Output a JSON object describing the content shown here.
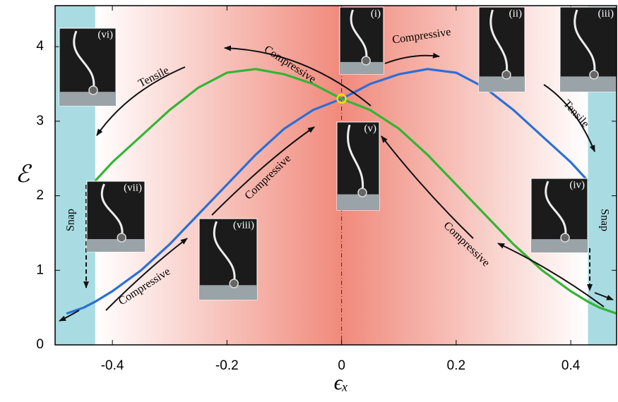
{
  "chart_data": {
    "type": "line",
    "x_label": "ϵₓ",
    "y_label": "ℰ",
    "xlim": [
      -0.5,
      0.48
    ],
    "ylim": [
      0,
      4.55
    ],
    "xticks": [
      -0.4,
      -0.2,
      0,
      0.2,
      0.4
    ],
    "yticks": [
      0,
      1,
      2,
      3,
      4
    ],
    "vline": 0,
    "regions": [
      {
        "from": -0.5,
        "to": -0.43,
        "color": "#a8dce2"
      },
      {
        "from": 0.43,
        "to": 0.48,
        "color": "#a8dce2"
      }
    ],
    "gradient_region": {
      "from": -0.43,
      "to": 0.43,
      "edge_color": "#ffffff",
      "center_color": "#f08a7c"
    },
    "series": [
      {
        "color": "#2a6fd8",
        "x": [
          -0.48,
          -0.45,
          -0.43,
          -0.4,
          -0.35,
          -0.3,
          -0.25,
          -0.2,
          -0.15,
          -0.1,
          -0.05,
          0,
          0.05,
          0.1,
          0.15,
          0.2,
          0.25,
          0.3,
          0.35,
          0.4,
          0.43
        ],
        "values": [
          0.42,
          0.5,
          0.58,
          0.72,
          1.0,
          1.35,
          1.75,
          2.15,
          2.55,
          2.9,
          3.15,
          3.3,
          3.5,
          3.63,
          3.7,
          3.65,
          3.45,
          3.15,
          2.8,
          2.45,
          2.2
        ]
      },
      {
        "color": "#33b534",
        "x": [
          -0.43,
          -0.4,
          -0.35,
          -0.3,
          -0.25,
          -0.2,
          -0.15,
          -0.1,
          -0.05,
          0,
          0.05,
          0.1,
          0.15,
          0.2,
          0.25,
          0.3,
          0.35,
          0.4,
          0.43,
          0.45,
          0.48
        ],
        "values": [
          2.2,
          2.45,
          2.8,
          3.15,
          3.45,
          3.65,
          3.7,
          3.63,
          3.5,
          3.3,
          3.15,
          2.9,
          2.55,
          2.15,
          1.75,
          1.35,
          1.0,
          0.72,
          0.58,
          0.5,
          0.42
        ]
      }
    ],
    "marker": {
      "x": 0,
      "y": 3.3,
      "color": "#f0e000"
    },
    "annotations": [
      "Compressive",
      "Compressive",
      "Tensile",
      "Tensile",
      "Compressive",
      "Compressive",
      "Compressive",
      "Snap",
      "Snap"
    ],
    "insets": [
      "(i)",
      "(ii)",
      "(iii)",
      "(iv)",
      "(v)",
      "(vi)",
      "(vii)",
      "(viii)"
    ]
  }
}
